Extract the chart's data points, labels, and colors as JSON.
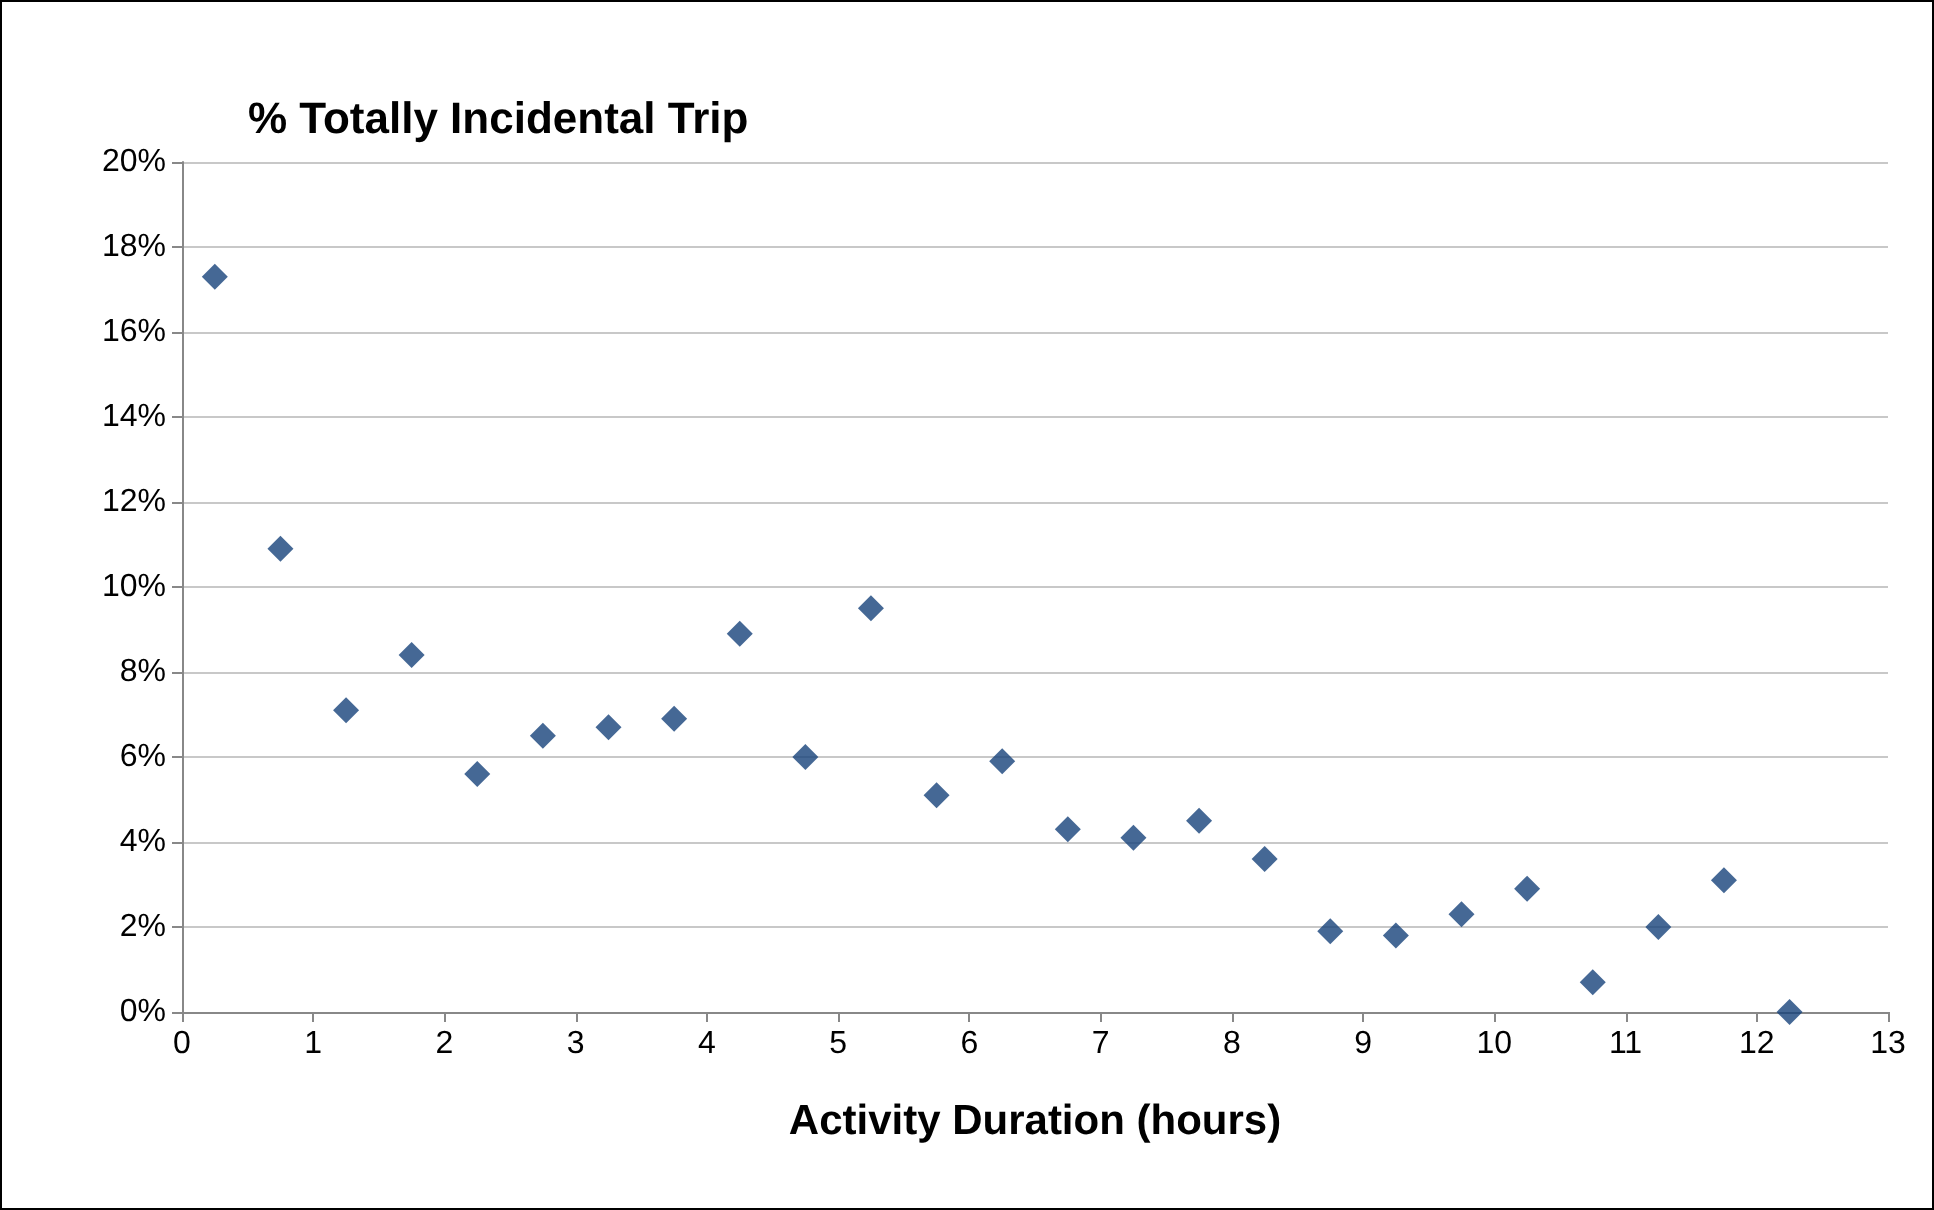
{
  "chart_data": {
    "type": "scatter",
    "title": "% Totally Incidental Trip",
    "xlabel": "Activity Duration (hours)",
    "x": [
      0.25,
      0.75,
      1.25,
      1.75,
      2.25,
      2.75,
      3.25,
      3.75,
      4.25,
      4.75,
      5.25,
      5.75,
      6.25,
      6.75,
      7.25,
      7.75,
      8.25,
      8.75,
      9.25,
      9.75,
      10.25,
      10.75,
      11.25,
      11.75,
      12.25
    ],
    "values": [
      17.3,
      10.9,
      7.1,
      8.4,
      5.6,
      6.5,
      6.7,
      6.9,
      8.9,
      6.0,
      9.5,
      5.1,
      5.9,
      4.3,
      4.1,
      4.5,
      3.6,
      1.9,
      1.8,
      2.3,
      2.9,
      0.7,
      2.0,
      3.1,
      0
    ],
    "color": "#16427a",
    "marker": "diamond",
    "grid": "y",
    "xlim": [
      0,
      13
    ],
    "xticks": [
      0,
      1,
      2,
      3,
      4,
      5,
      6,
      7,
      8,
      9,
      10,
      11,
      12,
      13
    ],
    "ylim": [
      0,
      20
    ],
    "yticks": [
      {
        "value": 0,
        "label": "0%"
      },
      {
        "value": 2,
        "label": "2%"
      },
      {
        "value": 4,
        "label": "4%"
      },
      {
        "value": 6,
        "label": "6%"
      },
      {
        "value": 8,
        "label": "8%"
      },
      {
        "value": 10,
        "label": "10%"
      },
      {
        "value": 12,
        "label": "12%"
      },
      {
        "value": 14,
        "label": "14%"
      },
      {
        "value": 16,
        "label": "16%"
      },
      {
        "value": 18,
        "label": "18%"
      },
      {
        "value": 20,
        "label": "20%"
      }
    ]
  }
}
